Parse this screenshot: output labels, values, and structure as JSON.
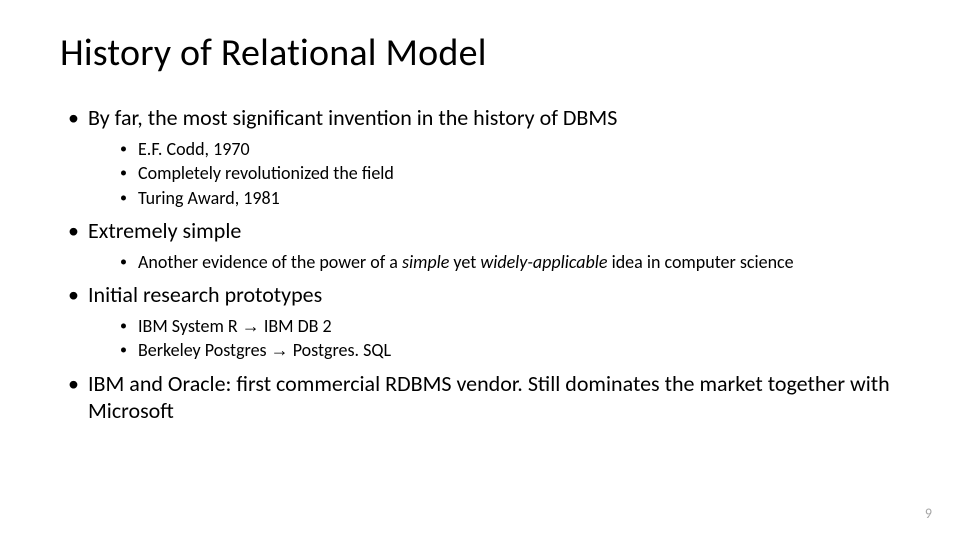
{
  "slide": {
    "title": "History of Relational Model",
    "page_number": "9",
    "colors": {
      "background": "#ffffff",
      "text": "#000000",
      "page_num": "#a6a6a6"
    },
    "font": {
      "title_size_pt": 38,
      "l1_size_pt": 22,
      "l2_size_pt": 18
    },
    "bullets": [
      {
        "text": "By far, the most significant invention in the history of DBMS",
        "sub": [
          {
            "text": "E.F. Codd, 1970"
          },
          {
            "text": "Completely revolutionized the field"
          },
          {
            "text": "Turing Award, 1981"
          }
        ]
      },
      {
        "text": "Extremely simple",
        "sub": [
          {
            "pre": "Another evidence of the power of a ",
            "i1": "simple",
            "mid": " yet ",
            "i2": "widely-applicable",
            "post": " idea in computer science"
          }
        ]
      },
      {
        "text": "Initial research prototypes",
        "sub": [
          {
            "seg1": "IBM System R ",
            "arrow1": "→",
            "seg2": " IBM DB 2"
          },
          {
            "seg1b": "Berkeley Postgres ",
            "arrow2": "→",
            "seg2b": " Postgres. SQL"
          }
        ]
      },
      {
        "text": "IBM and Oracle: first commercial RDBMS vendor. Still dominates the market together with Microsoft",
        "sub": []
      }
    ]
  }
}
